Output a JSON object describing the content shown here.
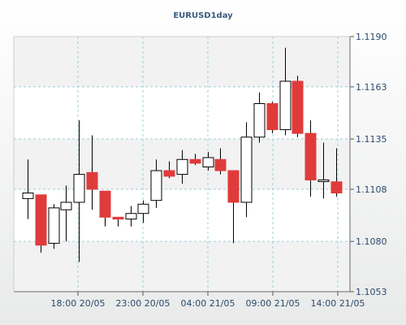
{
  "colors": {
    "grid": "#9bd0d8",
    "bear": "#e03b3b",
    "bull": "#ffffff",
    "outline": "#000000",
    "band": "#f2f2f2"
  },
  "chart_data": {
    "type": "candlestick",
    "title": "EURUSD1day",
    "ylim": [
      1.1053,
      1.119
    ],
    "y_ticks": [
      "1.1190",
      "1.1163",
      "1.1135",
      "1.1108",
      "1.1080",
      "1.1053"
    ],
    "x_ticks": [
      "18:00 20/05",
      "23:00 20/05",
      "04:00 21/05",
      "09:00 21/05",
      "14:00 21/05"
    ],
    "grid": true,
    "candles": [
      {
        "o": 1.1103,
        "h": 1.1124,
        "l": 1.1092,
        "c": 1.1106
      },
      {
        "o": 1.1105,
        "h": 1.1105,
        "l": 1.1074,
        "c": 1.1078
      },
      {
        "o": 1.1079,
        "h": 1.11,
        "l": 1.1076,
        "c": 1.1098
      },
      {
        "o": 1.1097,
        "h": 1.111,
        "l": 1.108,
        "c": 1.1101
      },
      {
        "o": 1.1101,
        "h": 1.1145,
        "l": 1.1069,
        "c": 1.1116
      },
      {
        "o": 1.1117,
        "h": 1.1137,
        "l": 1.1097,
        "c": 1.1108
      },
      {
        "o": 1.1107,
        "h": 1.1107,
        "l": 1.1088,
        "c": 1.1093
      },
      {
        "o": 1.1093,
        "h": 1.1093,
        "l": 1.1088,
        "c": 1.1092
      },
      {
        "o": 1.1092,
        "h": 1.1099,
        "l": 1.1088,
        "c": 1.1095
      },
      {
        "o": 1.1095,
        "h": 1.1102,
        "l": 1.109,
        "c": 1.11
      },
      {
        "o": 1.1102,
        "h": 1.1124,
        "l": 1.1098,
        "c": 1.1118
      },
      {
        "o": 1.1118,
        "h": 1.1123,
        "l": 1.1114,
        "c": 1.1115
      },
      {
        "o": 1.1116,
        "h": 1.1129,
        "l": 1.1111,
        "c": 1.1124
      },
      {
        "o": 1.1124,
        "h": 1.1127,
        "l": 1.1121,
        "c": 1.1122
      },
      {
        "o": 1.112,
        "h": 1.1128,
        "l": 1.1118,
        "c": 1.1125
      },
      {
        "o": 1.1124,
        "h": 1.113,
        "l": 1.1116,
        "c": 1.1118
      },
      {
        "o": 1.1118,
        "h": 1.1118,
        "l": 1.1079,
        "c": 1.1101
      },
      {
        "o": 1.1101,
        "h": 1.1144,
        "l": 1.1093,
        "c": 1.1136
      },
      {
        "o": 1.1136,
        "h": 1.116,
        "l": 1.1133,
        "c": 1.1154
      },
      {
        "o": 1.1154,
        "h": 1.1155,
        "l": 1.1138,
        "c": 1.114
      },
      {
        "o": 1.114,
        "h": 1.1184,
        "l": 1.1137,
        "c": 1.1166
      },
      {
        "o": 1.1166,
        "h": 1.1169,
        "l": 1.1136,
        "c": 1.1138
      },
      {
        "o": 1.1138,
        "h": 1.1145,
        "l": 1.1104,
        "c": 1.1113
      },
      {
        "o": 1.1113,
        "h": 1.1133,
        "l": 1.1103,
        "c": 1.1113
      },
      {
        "o": 1.1112,
        "h": 1.113,
        "l": 1.1104,
        "c": 1.1106
      }
    ]
  }
}
